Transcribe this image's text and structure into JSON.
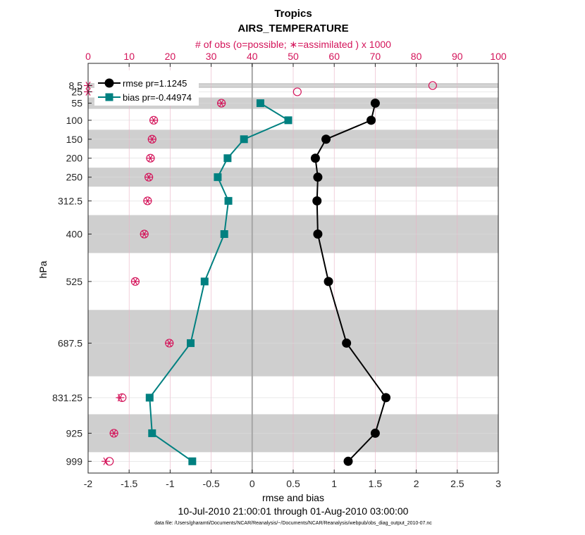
{
  "chart_data": {
    "type": "line",
    "title": "Tropics",
    "subtitle": "AIRS_TEMPERATURE",
    "top_axis_label": "# of obs (o=possible; ∗=assimilated ) x 1000",
    "xlabel": "rmse and bias",
    "ylabel": "hPa",
    "date_range": "10-Jul-2010 21:00:01 through 01-Aug-2010 03:00:00",
    "data_file": "data file: /Users/gharamti/Documents/NCAR/Reanalysis/~/Documents/NCAR/Reanalysis/webpub/obs_diag_output_2010-07.nc",
    "xlim": [
      -2,
      3
    ],
    "xticks": [
      -2,
      -1.5,
      -1,
      -0.5,
      0,
      0.5,
      1,
      1.5,
      2,
      2.5,
      3
    ],
    "xtick_labels": [
      "-2",
      "-1.5",
      "-1",
      "-0.5",
      "0",
      "0.5",
      "1",
      "1.5",
      "2",
      "2.5",
      "3"
    ],
    "top_xlim": [
      0,
      100
    ],
    "top_xticks": [
      0,
      10,
      20,
      30,
      40,
      50,
      60,
      70,
      80,
      90,
      100
    ],
    "top_xtick_labels": [
      "0",
      "10",
      "20",
      "30",
      "40",
      "50",
      "60",
      "70",
      "80",
      "90",
      "100"
    ],
    "ylim": [
      1030,
      -50
    ],
    "levels": [
      8.5,
      25,
      55,
      100,
      150,
      200,
      250,
      312.5,
      400,
      525,
      687.5,
      831.25,
      925,
      999
    ],
    "level_labels": [
      "8.5",
      "25",
      "55",
      "100",
      "150",
      "200",
      "250",
      "312.5",
      "400",
      "525",
      "687.5",
      "831.25",
      "925",
      "999"
    ],
    "layer_bands": [
      [
        2,
        15
      ],
      [
        40,
        70
      ],
      [
        125,
        175
      ],
      [
        225,
        275
      ],
      [
        350,
        450
      ],
      [
        600,
        775
      ],
      [
        875,
        975
      ]
    ],
    "series": [
      {
        "name": "rmse pr=1.1245",
        "color": "#000000",
        "marker": "circle",
        "values": [
          null,
          null,
          1.5,
          1.45,
          0.9,
          0.77,
          0.8,
          0.79,
          0.8,
          0.93,
          1.15,
          1.63,
          1.5,
          1.17
        ]
      },
      {
        "name": "bias pr=-0.44974",
        "color": "#008080",
        "marker": "square",
        "values": [
          null,
          null,
          0.1,
          0.44,
          -0.1,
          -0.3,
          -0.42,
          -0.29,
          -0.34,
          -0.58,
          -0.75,
          -1.25,
          -1.22,
          -0.73
        ]
      }
    ],
    "obs_possible": [
      84,
      51,
      32.5,
      16,
      15.6,
      15.2,
      14.8,
      14.5,
      13.7,
      11.5,
      19.8,
      8.3,
      6.3,
      5.2
    ],
    "obs_assimilated": [
      0,
      0,
      32.5,
      16,
      15.6,
      15.2,
      14.8,
      14.5,
      13.7,
      11.5,
      19.8,
      7.8,
      6.3,
      4.3
    ],
    "legend_location": "top-left",
    "grid": true,
    "colors": {
      "obs": "#d4145a",
      "band": "#cfcfcf",
      "zero_line": "#a6a6a6",
      "grid": "#e8b0c4",
      "hgrid": "#dcdcdc"
    }
  }
}
